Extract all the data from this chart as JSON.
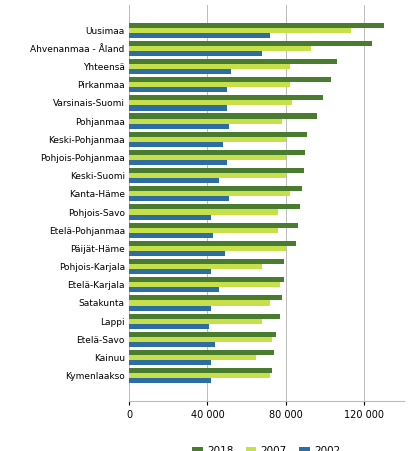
{
  "categories": [
    "Uusimaa",
    "Ahvenanmaa - Åland",
    "Yhteensä",
    "Pirkanmaa",
    "Varsinais-Suomi",
    "Pohjanmaa",
    "Keski-Pohjanmaa",
    "Pohjois-Pohjanmaa",
    "Keski-Suomi",
    "Kanta-Häme",
    "Pohjois-Savo",
    "Etelä-Pohjanmaa",
    "Päijät-Häme",
    "Pohjois-Karjala",
    "Etelä-Karjala",
    "Satakunta",
    "Lappi",
    "Etelä-Savo",
    "Kainuu",
    "Kymenlaakso"
  ],
  "series": {
    "2018": [
      130000,
      124000,
      106000,
      103000,
      99000,
      96000,
      91000,
      90000,
      89000,
      88000,
      87000,
      86000,
      85000,
      79000,
      79000,
      78000,
      77000,
      75000,
      74000,
      73000
    ],
    "2007": [
      113000,
      93000,
      82000,
      82000,
      83000,
      78000,
      80000,
      80000,
      80000,
      82000,
      76000,
      76000,
      80000,
      68000,
      77000,
      72000,
      68000,
      73000,
      65000,
      72000
    ],
    "2002": [
      72000,
      68000,
      52000,
      50000,
      50000,
      51000,
      48000,
      50000,
      46000,
      51000,
      42000,
      43000,
      49000,
      42000,
      46000,
      42000,
      41000,
      44000,
      42000,
      42000
    ]
  },
  "colors": {
    "2018": "#4a7c2f",
    "2007": "#c5e04a",
    "2002": "#2e6ca4"
  },
  "xlim": [
    0,
    140000
  ],
  "xticks": [
    0,
    40000,
    80000,
    120000
  ],
  "xtick_labels": [
    "0",
    "40 000",
    "80 000",
    "120 000"
  ],
  "background_color": "#ffffff",
  "grid_color": "#bbbbbb",
  "bar_height": 0.28
}
